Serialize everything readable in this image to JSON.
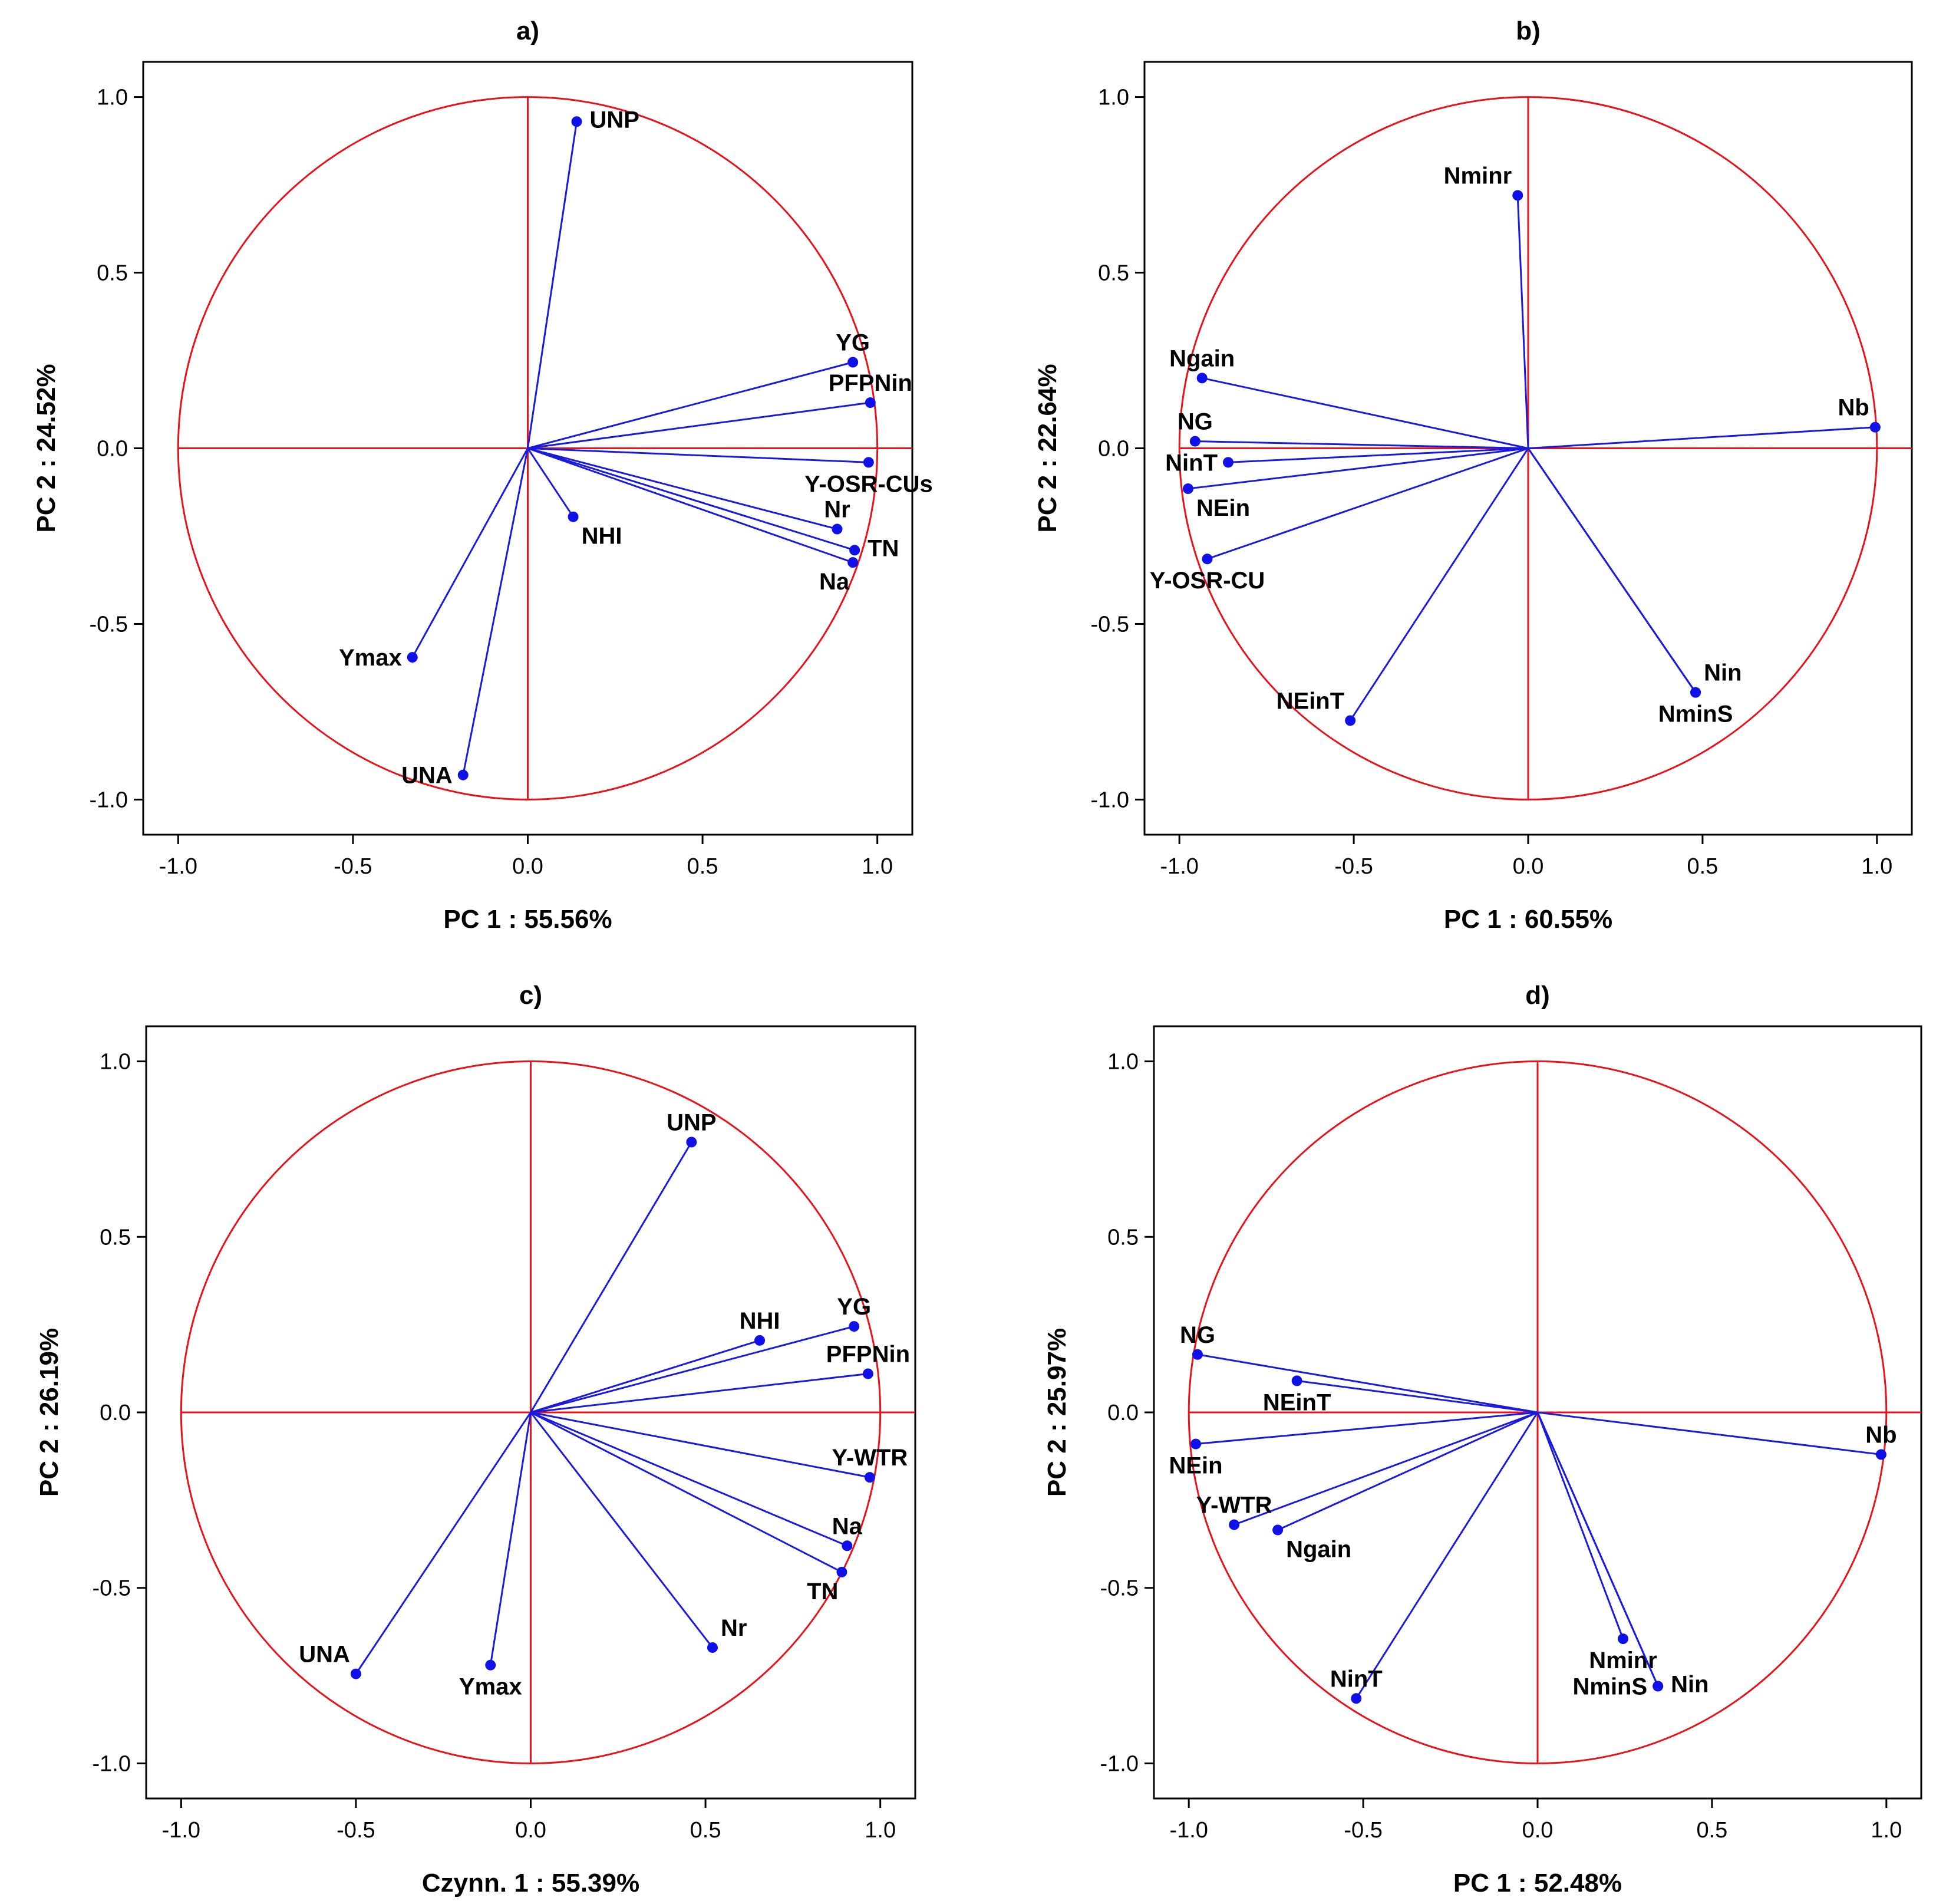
{
  "colors": {
    "circle": "#e8121b",
    "vector": "#1a1adf",
    "point": "#1010e8",
    "frame": "#000000"
  },
  "chart_data": [
    {
      "type": "scatter",
      "subtype": "pca-correlation-circle",
      "title": "a)",
      "xlabel": "PC 1 : 55.56%",
      "ylabel": "PC 2 : 24.52%",
      "xlim": [
        -1.1,
        1.1
      ],
      "ylim": [
        -1.1,
        1.1
      ],
      "xticks": [
        "-1.0",
        "-0.5",
        "0.0",
        "0.5",
        "1.0"
      ],
      "yticks": [
        "1.0",
        "0.5",
        "0.0",
        "-0.5",
        "-1.0"
      ],
      "points": [
        {
          "label": "UNP",
          "x": 0.14,
          "y": 0.93,
          "label_pos": "right"
        },
        {
          "label": "YG",
          "x": 0.93,
          "y": 0.245,
          "label_pos": "above"
        },
        {
          "label": "PFPNin",
          "x": 0.98,
          "y": 0.13,
          "label_pos": "above"
        },
        {
          "label": "Y-OSR-CUs",
          "x": 0.975,
          "y": -0.04,
          "label_pos": "below"
        },
        {
          "label": "Nr",
          "x": 0.885,
          "y": -0.23,
          "label_pos": "above"
        },
        {
          "label": "TN",
          "x": 0.935,
          "y": -0.29,
          "label_pos": "right"
        },
        {
          "label": "Na",
          "x": 0.93,
          "y": -0.325,
          "label_pos": "belowleft"
        },
        {
          "label": "NHI",
          "x": 0.13,
          "y": -0.195,
          "label_pos": "belowright"
        },
        {
          "label": "Ymax",
          "x": -0.33,
          "y": -0.595,
          "label_pos": "left"
        },
        {
          "label": "UNA",
          "x": -0.185,
          "y": -0.93,
          "label_pos": "left"
        }
      ]
    },
    {
      "type": "scatter",
      "subtype": "pca-correlation-circle",
      "title": "b)",
      "xlabel": "PC 1 : 60.55%",
      "ylabel": "PC 2 : 22.64%",
      "xlim": [
        -1.1,
        1.1
      ],
      "ylim": [
        -1.1,
        1.1
      ],
      "xticks": [
        "-1.0",
        "-0.5",
        "0.0",
        "0.5",
        "1.0"
      ],
      "yticks": [
        "1.0",
        "0.5",
        "0.0",
        "-0.5",
        "-1.0"
      ],
      "points": [
        {
          "label": "Nminr",
          "x": -0.03,
          "y": 0.72,
          "label_pos": "aboveleft"
        },
        {
          "label": "Ngain",
          "x": -0.935,
          "y": 0.2,
          "label_pos": "above"
        },
        {
          "label": "NG",
          "x": -0.955,
          "y": 0.02,
          "label_pos": "above"
        },
        {
          "label": "NinT",
          "x": -0.86,
          "y": -0.04,
          "label_pos": "left"
        },
        {
          "label": "NEin",
          "x": -0.975,
          "y": -0.115,
          "label_pos": "belowright"
        },
        {
          "label": "Y-OSR-CU",
          "x": -0.92,
          "y": -0.315,
          "label_pos": "below"
        },
        {
          "label": "NEinT",
          "x": -0.51,
          "y": -0.775,
          "label_pos": "aboveleft"
        },
        {
          "label": "Nin",
          "x": 0.48,
          "y": -0.695,
          "label_pos": "aboveright"
        },
        {
          "label": "NminS",
          "x": 0.48,
          "y": -0.695,
          "label_pos": "below"
        },
        {
          "label": "Nb",
          "x": 0.995,
          "y": 0.06,
          "label_pos": "aboveleft"
        }
      ]
    },
    {
      "type": "scatter",
      "subtype": "pca-correlation-circle",
      "title": "c)",
      "xlabel": "Czynn. 1 : 55.39%",
      "ylabel": "PC 2 : 26.19%",
      "xlim": [
        -1.1,
        1.1
      ],
      "ylim": [
        -1.1,
        1.1
      ],
      "xticks": [
        "-1.0",
        "-0.5",
        "0.0",
        "0.5",
        "1.0"
      ],
      "yticks": [
        "1.0",
        "0.5",
        "0.0",
        "-0.5",
        "-1.0"
      ],
      "points": [
        {
          "label": "UNP",
          "x": 0.46,
          "y": 0.77,
          "label_pos": "above"
        },
        {
          "label": "NHI",
          "x": 0.655,
          "y": 0.205,
          "label_pos": "above"
        },
        {
          "label": "YG",
          "x": 0.925,
          "y": 0.245,
          "label_pos": "above"
        },
        {
          "label": "PFPNin",
          "x": 0.965,
          "y": 0.11,
          "label_pos": "above"
        },
        {
          "label": "Y-WTR",
          "x": 0.97,
          "y": -0.185,
          "label_pos": "above"
        },
        {
          "label": "Na",
          "x": 0.905,
          "y": -0.38,
          "label_pos": "above"
        },
        {
          "label": "TN",
          "x": 0.89,
          "y": -0.455,
          "label_pos": "belowleft"
        },
        {
          "label": "Nr",
          "x": 0.52,
          "y": -0.67,
          "label_pos": "aboveright"
        },
        {
          "label": "UNA",
          "x": -0.5,
          "y": -0.745,
          "label_pos": "aboveleft"
        },
        {
          "label": "Ymax",
          "x": -0.115,
          "y": -0.72,
          "label_pos": "below"
        }
      ]
    },
    {
      "type": "scatter",
      "subtype": "pca-correlation-circle",
      "title": "d)",
      "xlabel": "PC 1 : 52.48%",
      "ylabel": "PC 2 : 25.97%",
      "xlim": [
        -1.1,
        1.1
      ],
      "ylim": [
        -1.1,
        1.1
      ],
      "xticks": [
        "-1.0",
        "-0.5",
        "0.0",
        "0.5",
        "1.0"
      ],
      "yticks": [
        "1.0",
        "0.5",
        "0.0",
        "-0.5",
        "-1.0"
      ],
      "points": [
        {
          "label": "NG",
          "x": -0.975,
          "y": 0.165,
          "label_pos": "above"
        },
        {
          "label": "NEinT",
          "x": -0.69,
          "y": 0.09,
          "label_pos": "below"
        },
        {
          "label": "NEin",
          "x": -0.98,
          "y": -0.09,
          "label_pos": "below"
        },
        {
          "label": "Y-WTR",
          "x": -0.87,
          "y": -0.32,
          "label_pos": "above"
        },
        {
          "label": "Ngain",
          "x": -0.745,
          "y": -0.335,
          "label_pos": "belowright"
        },
        {
          "label": "NinT",
          "x": -0.52,
          "y": -0.815,
          "label_pos": "above"
        },
        {
          "label": "Nminr",
          "x": 0.245,
          "y": -0.645,
          "label_pos": "below"
        },
        {
          "label": "NminS",
          "x": 0.345,
          "y": -0.78,
          "label_pos": "left"
        },
        {
          "label": "Nin",
          "x": 0.345,
          "y": -0.78,
          "label_pos": "right"
        },
        {
          "label": "Nb",
          "x": 0.985,
          "y": -0.12,
          "label_pos": "above"
        }
      ]
    }
  ]
}
